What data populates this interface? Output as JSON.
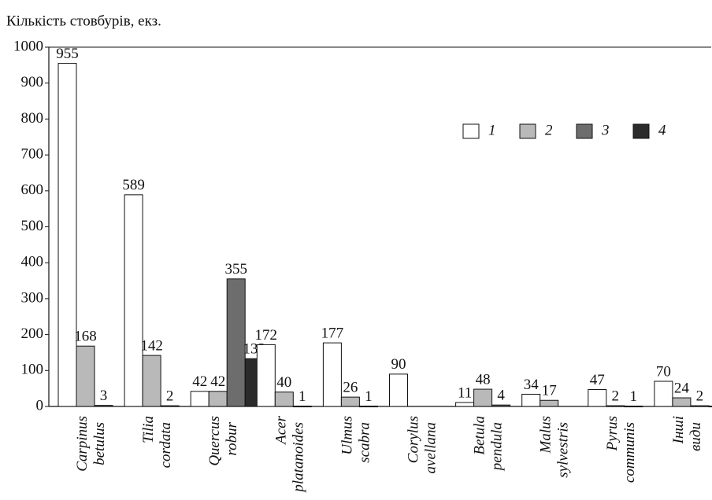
{
  "chart_data": {
    "type": "bar",
    "ylabel": "Кількість стовбурів, екз.",
    "categories": [
      "Carpinus betulus",
      "Tilia cordata",
      "Quercus robur",
      "Acer platanoides",
      "Ulmus scabra",
      "Corylus avellana",
      "Betula pendula",
      "Malus sylvestris",
      "Pyrus communis",
      "Інші види"
    ],
    "series": [
      {
        "name": "1",
        "color": "#ffffff",
        "values": [
          955,
          589,
          42,
          172,
          177,
          90,
          11,
          34,
          47,
          70
        ]
      },
      {
        "name": "2",
        "color": "#b9b9b9",
        "values": [
          168,
          142,
          42,
          40,
          26,
          null,
          48,
          17,
          2,
          24
        ]
      },
      {
        "name": "3",
        "color": "#6d6d6d",
        "values": [
          3,
          2,
          355,
          1,
          1,
          null,
          4,
          null,
          1,
          2
        ]
      },
      {
        "name": "4",
        "color": "#2b2b2b",
        "values": [
          null,
          null,
          133,
          null,
          null,
          null,
          null,
          null,
          null,
          1
        ]
      }
    ],
    "ylim": [
      0,
      1000
    ],
    "yticks": [
      0,
      100,
      200,
      300,
      400,
      500,
      600,
      700,
      800,
      900,
      1000
    ],
    "legend": "upper right"
  }
}
